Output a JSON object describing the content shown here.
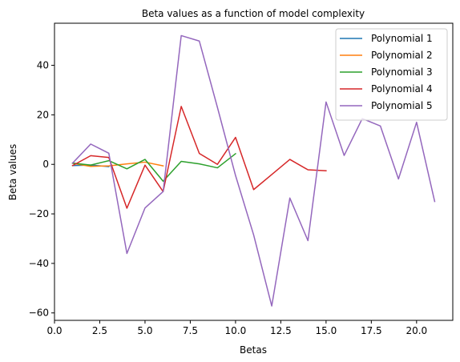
{
  "chart_data": {
    "type": "line",
    "title": "Beta values as a function of model complexity",
    "xlabel": "Betas",
    "ylabel": "Beta values",
    "xlim": [
      0.0,
      22.0
    ],
    "ylim": [
      -63,
      57
    ],
    "xticks": [
      0.0,
      2.5,
      5.0,
      7.5,
      10.0,
      12.5,
      15.0,
      17.5,
      20.0
    ],
    "xtick_labels": [
      "0.0",
      "2.5",
      "5.0",
      "7.5",
      "10.0",
      "12.5",
      "15.0",
      "17.5",
      "20.0"
    ],
    "yticks": [
      -60,
      -40,
      -20,
      0,
      20,
      40
    ],
    "ytick_labels": [
      "−60",
      "−40",
      "−20",
      "0",
      "20",
      "40"
    ],
    "grid": false,
    "legend_position": "top-right",
    "series": [
      {
        "name": "Polynomial 1",
        "color": "#1f77b4",
        "x": [
          1,
          2,
          3
        ],
        "y": [
          -0.5,
          -0.3,
          -0.9
        ]
      },
      {
        "name": "Polynomial 2",
        "color": "#ff7f0e",
        "x": [
          1,
          2,
          3,
          4,
          5,
          6
        ],
        "y": [
          0.4,
          -0.8,
          -0.6,
          0.2,
          0.9,
          -0.6
        ]
      },
      {
        "name": "Polynomial 3",
        "color": "#2ca02c",
        "x": [
          1,
          2,
          3,
          4,
          5,
          6,
          7,
          8,
          9,
          10
        ],
        "y": [
          0.5,
          -0.3,
          1.5,
          -1.8,
          2.0,
          -6.8,
          1.2,
          0.2,
          -1.4,
          4.3
        ]
      },
      {
        "name": "Polynomial 4",
        "color": "#d62728",
        "x": [
          1,
          2,
          3,
          4,
          5,
          6,
          7,
          8,
          9,
          10,
          11,
          12,
          13,
          14,
          15
        ],
        "y": [
          -0.5,
          3.5,
          2.8,
          -17.7,
          -0.3,
          -11.0,
          23.4,
          4.4,
          0.0,
          10.9,
          -10.2,
          -4.1,
          2.0,
          -2.2,
          -2.6
        ]
      },
      {
        "name": "Polynomial 5",
        "color": "#9467bd",
        "x": [
          1,
          2,
          3,
          4,
          5,
          6,
          7,
          8,
          9,
          10,
          11,
          12,
          13,
          14,
          15,
          16,
          17,
          18,
          19,
          20,
          21
        ],
        "y": [
          0.5,
          8.2,
          4.5,
          -36.0,
          -17.6,
          -11.0,
          52.0,
          49.8,
          23.0,
          -4.5,
          -28.5,
          -57.2,
          -13.6,
          -30.8,
          25.2,
          3.6,
          18.5,
          15.5,
          -5.9,
          17.0,
          -15.0
        ]
      }
    ]
  }
}
